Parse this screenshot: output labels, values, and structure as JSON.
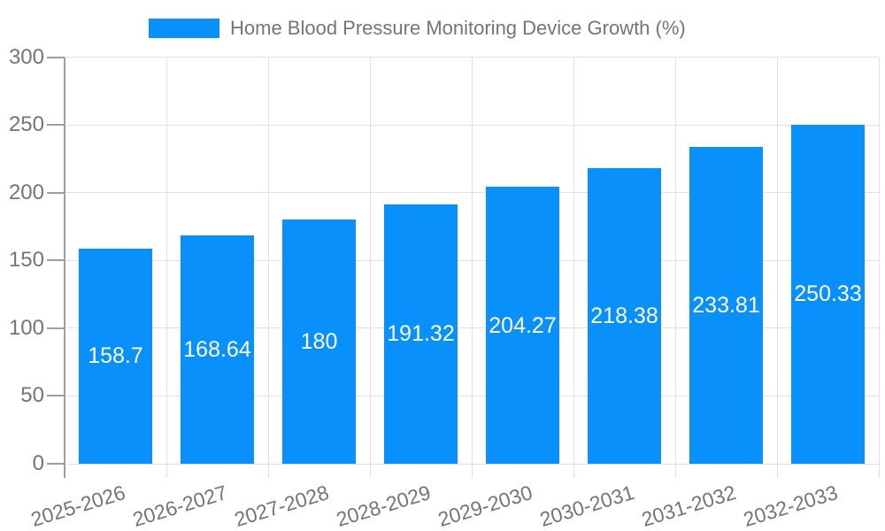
{
  "chart_data": {
    "type": "bar",
    "legend_label": "Home Blood Pressure Monitoring Device Growth (%)",
    "legend_position": "top",
    "categories": [
      "2025-2026",
      "2026-2027",
      "2027-2028",
      "2028-2029",
      "2029-2030",
      "2030-2031",
      "2031-2032",
      "2032-2033"
    ],
    "values": [
      158.7,
      168.64,
      180,
      191.32,
      204.27,
      218.38,
      233.81,
      250.33
    ],
    "ylim": [
      0,
      300
    ],
    "yticks": [
      0,
      50,
      100,
      150,
      200,
      250,
      300
    ],
    "grid": true,
    "colors": {
      "bar": "#0990fa",
      "axis_text": "#757575",
      "bar_label_text": "#ffffff",
      "gridline": "#e0e0e0",
      "axis_line": "#9e9e9e"
    }
  }
}
